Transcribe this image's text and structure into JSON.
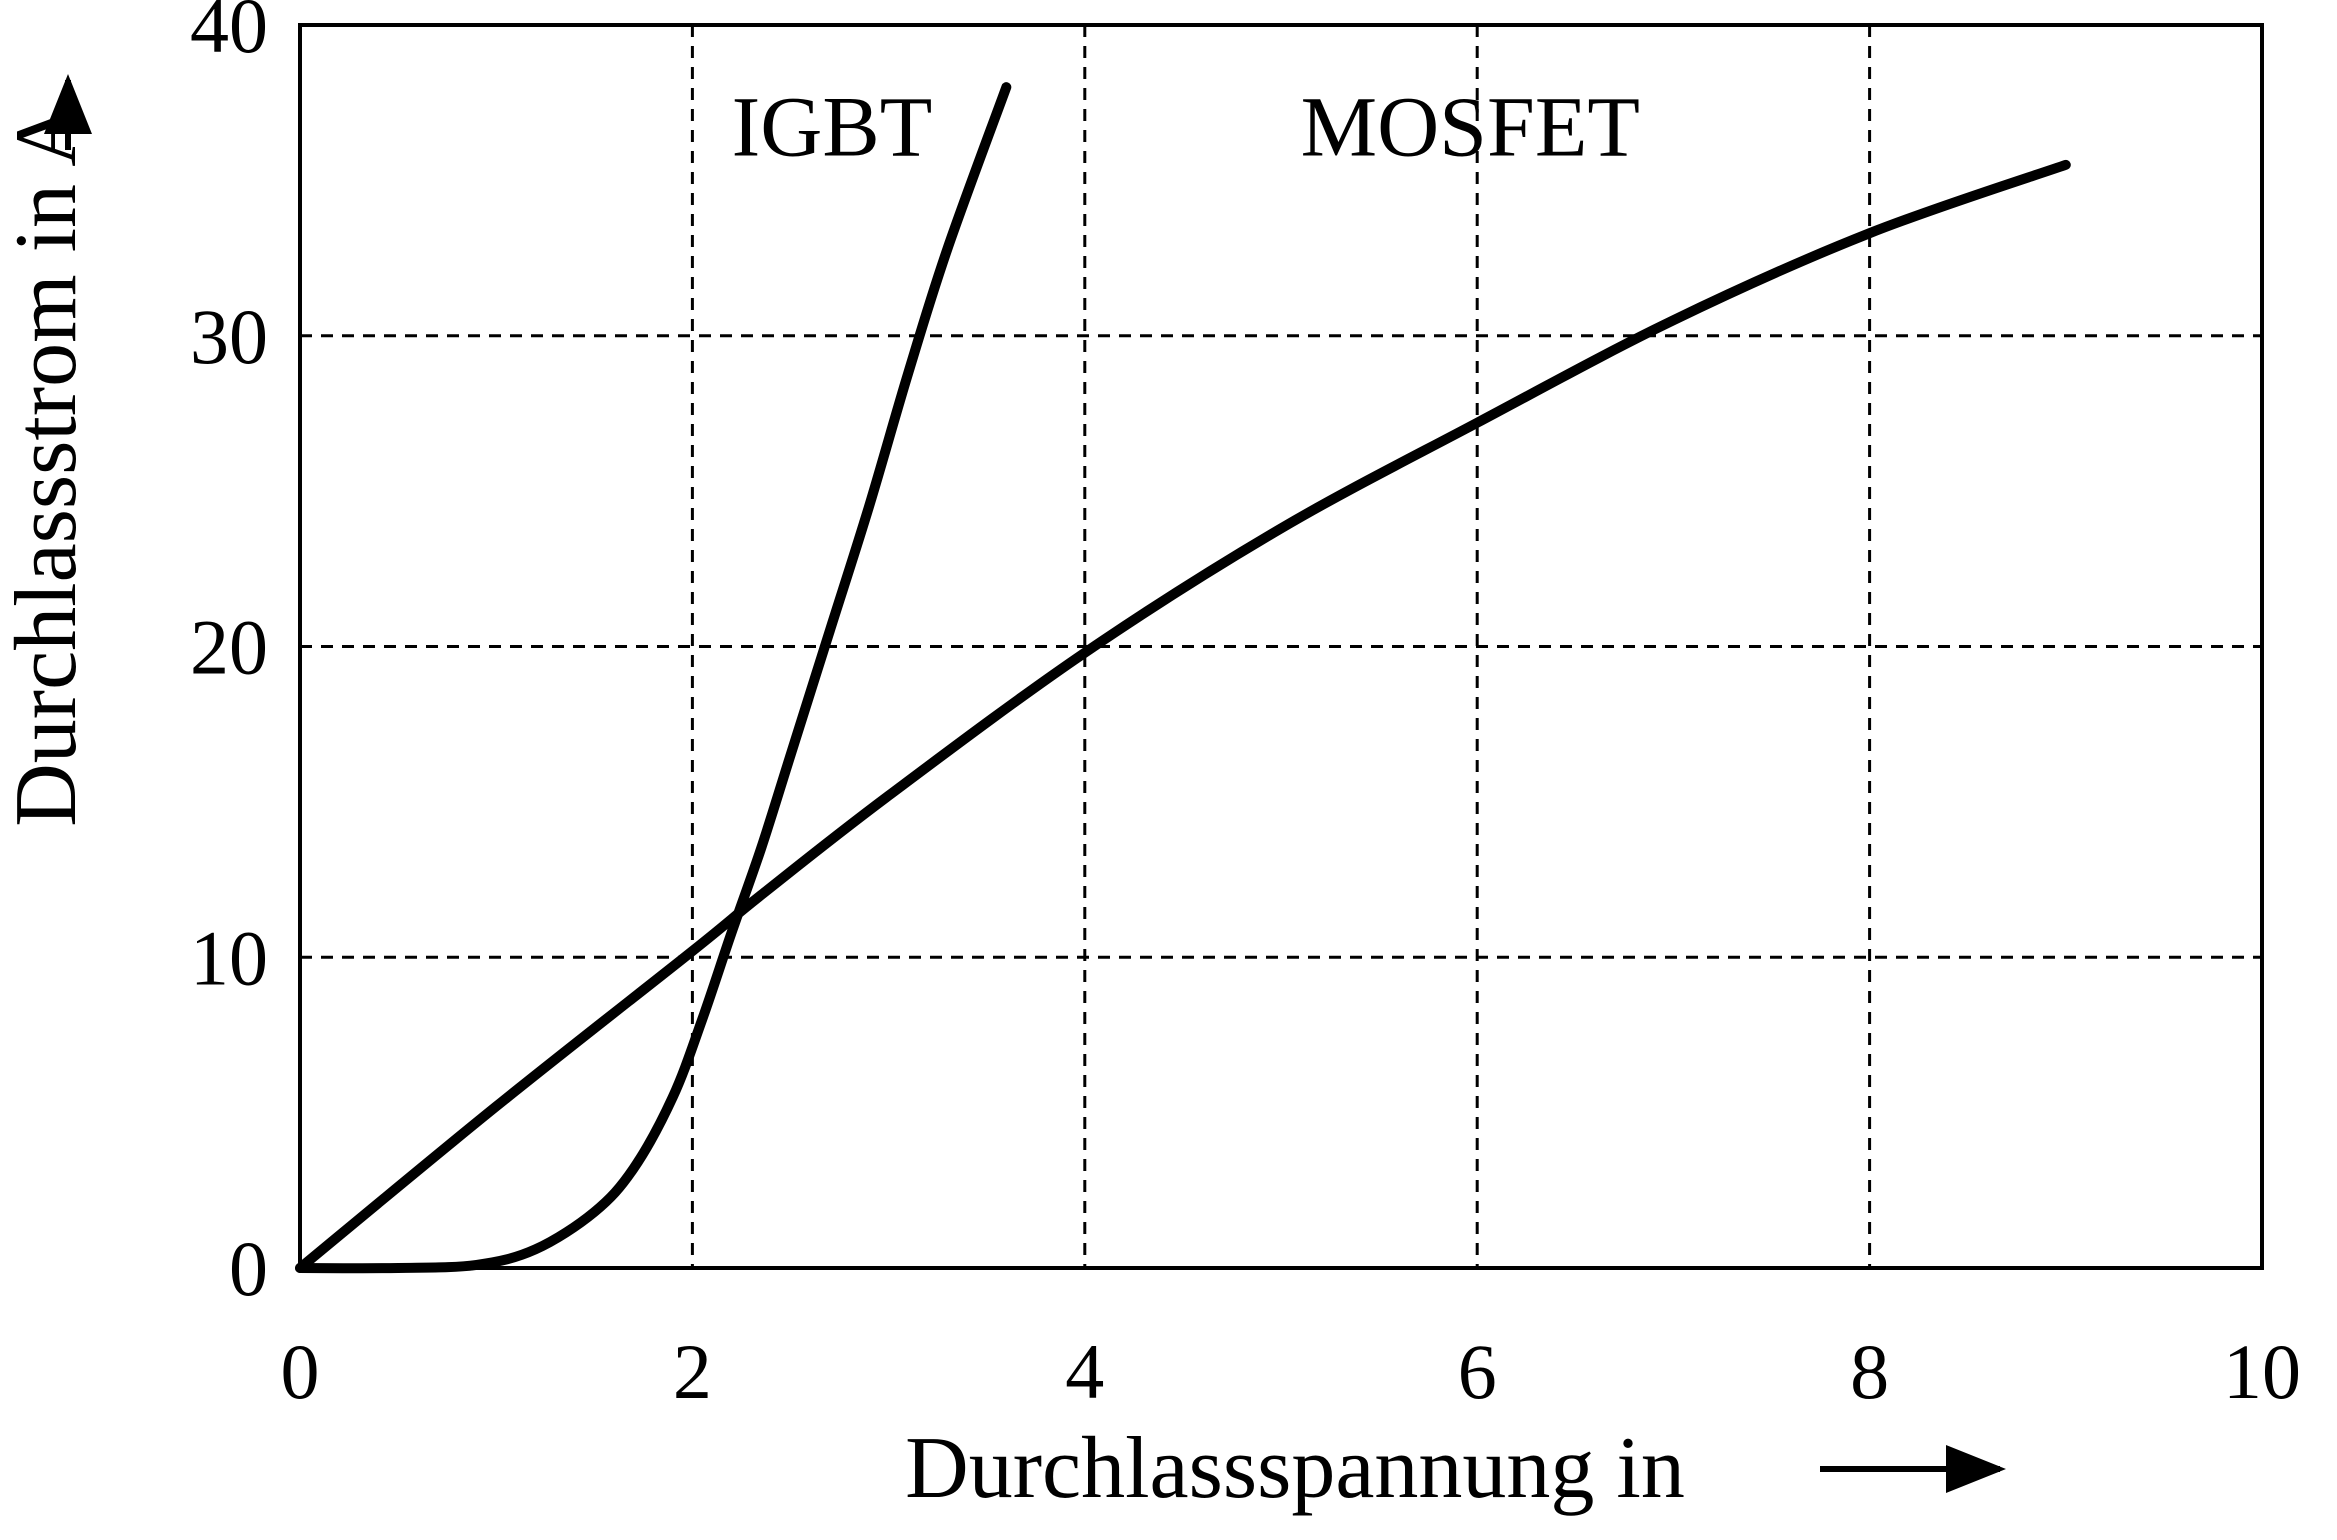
{
  "chart_data": {
    "type": "line",
    "title": "",
    "xlabel": "Durchlassspannung in",
    "ylabel": "Durchlassstrom in A",
    "xlim": [
      0,
      10
    ],
    "ylim": [
      0,
      40
    ],
    "x_ticks": [
      "0",
      "2",
      "4",
      "6",
      "8",
      "10"
    ],
    "y_ticks": [
      "0",
      "10",
      "20",
      "30",
      "40"
    ],
    "grid": true,
    "grid_style": "dashed",
    "line_color": "#000000",
    "series": [
      {
        "name": "IGBT",
        "x": [
          0.0,
          0.5,
          0.9,
          1.2,
          1.5,
          1.7,
          1.9,
          2.05,
          2.2,
          2.35,
          2.5,
          2.7,
          2.9,
          3.1,
          3.3,
          3.6
        ],
        "y": [
          0.0,
          0.0,
          0.1,
          0.6,
          1.8,
          3.2,
          5.5,
          8.0,
          10.8,
          13.5,
          16.5,
          20.5,
          24.5,
          28.8,
          32.8,
          38.0
        ]
      },
      {
        "name": "MOSFET",
        "x": [
          0.0,
          1.0,
          2.0,
          2.35,
          3.0,
          4.0,
          5.0,
          6.0,
          7.0,
          8.0,
          9.0
        ],
        "y": [
          0.0,
          5.2,
          10.2,
          12.0,
          15.2,
          19.8,
          23.8,
          27.2,
          30.5,
          33.3,
          35.5
        ]
      }
    ]
  }
}
